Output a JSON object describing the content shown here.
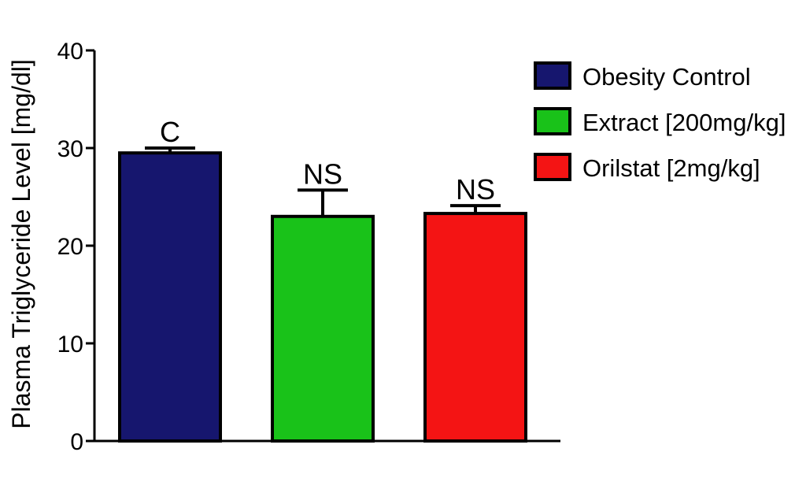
{
  "chart_data": {
    "type": "bar",
    "ylabel": "Plasma Triglyceride Level [mg/dl]",
    "xlabel": "",
    "ylim": [
      0,
      40
    ],
    "yticks": [
      0,
      10,
      20,
      30,
      40
    ],
    "ytick_labels": [
      "0",
      "10",
      "20",
      "30",
      "40"
    ],
    "grid": false,
    "legend_position": "top-right",
    "series": [
      {
        "name": "Obesity Control",
        "value": 29.5,
        "error": 0.5,
        "color": "#16166e",
        "annotation": "C"
      },
      {
        "name": "Extract [200mg/kg]",
        "value": 23.0,
        "error": 2.7,
        "color": "#19c219",
        "annotation": "NS"
      },
      {
        "name": "Orilstat [2mg/kg]",
        "value": 23.3,
        "error": 0.8,
        "color": "#f41414",
        "annotation": "NS"
      }
    ]
  }
}
